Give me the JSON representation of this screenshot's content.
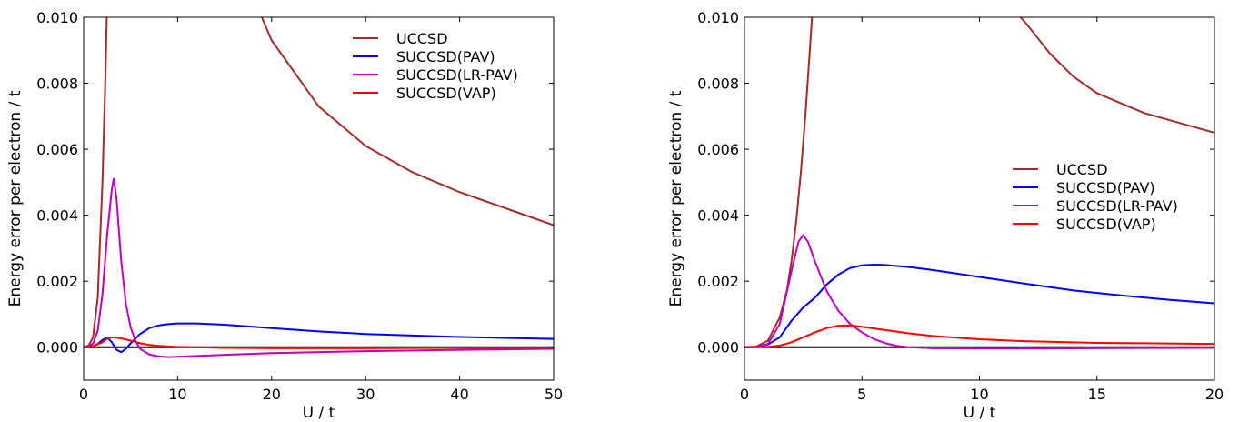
{
  "chart_data": [
    {
      "type": "line",
      "title": "",
      "xlabel": "U / t",
      "ylabel": "Energy error per electron / t",
      "xlim": [
        0,
        50
      ],
      "ylim": [
        -0.001,
        0.01
      ],
      "xticks": [
        0,
        10,
        20,
        30,
        40,
        50
      ],
      "xtick_labels": [
        "0",
        "10",
        "20",
        "30",
        "40",
        "50"
      ],
      "yticks": [
        0.0,
        0.002,
        0.004,
        0.006,
        0.008,
        0.01
      ],
      "ytick_labels": [
        "0.000",
        "0.002",
        "0.004",
        "0.006",
        "0.008",
        "0.010"
      ],
      "grid": false,
      "legend_position": "top-right",
      "reference_line": {
        "y": 0,
        "color": "#000000"
      },
      "series": [
        {
          "name": "UCCSD",
          "color": "#a52a2a",
          "x": [
            0,
            0.5,
            1,
            1.5,
            2,
            2.3,
            2.5,
            18.5,
            20,
            25,
            30,
            35,
            40,
            45,
            50
          ],
          "y": [
            0,
            3e-05,
            0.0003,
            0.0015,
            0.005,
            0.008,
            0.0105,
            0.0103,
            0.0093,
            0.0073,
            0.0061,
            0.0053,
            0.0047,
            0.0042,
            0.0037
          ]
        },
        {
          "name": "SUCCSD(PAV)",
          "color": "#0000ff",
          "x": [
            0,
            1,
            1.5,
            2,
            2.5,
            3,
            3.5,
            4,
            4.5,
            5,
            6,
            7,
            8,
            9,
            10,
            12,
            15,
            20,
            25,
            30,
            40,
            50
          ],
          "y": [
            0,
            3e-05,
            0.0001,
            0.00022,
            0.0003,
            0.00015,
            -8e-05,
            -0.00015,
            -5e-05,
            0.00012,
            0.0004,
            0.00058,
            0.00066,
            0.0007,
            0.00072,
            0.00072,
            0.00068,
            0.00058,
            0.00048,
            0.0004,
            0.00031,
            0.00025
          ]
        },
        {
          "name": "SUCCSD(LR-PAV)",
          "color": "#bf00bf",
          "x": [
            0,
            1,
            1.5,
            2,
            2.5,
            3,
            3.2,
            3.5,
            4,
            4.5,
            5,
            5.5,
            6,
            7,
            8,
            9,
            10,
            15,
            20,
            30,
            40,
            50
          ],
          "y": [
            0,
            0.0001,
            0.0005,
            0.0016,
            0.0034,
            0.0048,
            0.0051,
            0.0045,
            0.0026,
            0.0013,
            0.0006,
            0.0002,
            -5e-05,
            -0.00022,
            -0.00028,
            -0.0003,
            -0.00029,
            -0.00023,
            -0.00018,
            -0.00012,
            -8e-05,
            -5e-05
          ]
        },
        {
          "name": "SUCCSD(VAP)",
          "color": "#ff0000",
          "x": [
            0,
            1,
            2,
            2.5,
            3,
            3.5,
            4,
            5,
            6,
            7,
            8,
            10,
            15,
            20,
            30,
            40,
            50
          ],
          "y": [
            0,
            3e-05,
            0.00015,
            0.00026,
            0.0003,
            0.00029,
            0.00027,
            0.0002,
            0.00012,
            7e-05,
            4e-05,
            1e-05,
            -2e-05,
            -3e-05,
            -3e-05,
            -2e-05,
            -2e-05
          ]
        }
      ]
    },
    {
      "type": "line",
      "title": "",
      "xlabel": "U / t",
      "ylabel": "Energy error per electron / t",
      "xlim": [
        0,
        20
      ],
      "ylim": [
        -0.001,
        0.01
      ],
      "xticks": [
        0,
        5,
        10,
        15,
        20
      ],
      "xtick_labels": [
        "0",
        "5",
        "10",
        "15",
        "20"
      ],
      "yticks": [
        0.0,
        0.002,
        0.004,
        0.006,
        0.008,
        0.01
      ],
      "ytick_labels": [
        "0.000",
        "0.002",
        "0.004",
        "0.006",
        "0.008",
        "0.010"
      ],
      "grid": false,
      "legend_position": "center-right",
      "reference_line": {
        "y": 0,
        "color": "#000000"
      },
      "series": [
        {
          "name": "UCCSD",
          "color": "#a52a2a",
          "x": [
            0,
            0.5,
            1,
            1.5,
            1.8,
            2,
            2.2,
            2.4,
            2.6,
            2.8,
            2.9,
            11.5,
            12,
            13,
            14,
            15,
            16,
            17,
            18,
            19,
            20
          ],
          "y": [
            0,
            2e-05,
            0.0002,
            0.0009,
            0.0017,
            0.0026,
            0.0038,
            0.0053,
            0.0071,
            0.0092,
            0.0103,
            0.0102,
            0.0098,
            0.0089,
            0.0082,
            0.0077,
            0.0074,
            0.0071,
            0.0069,
            0.0067,
            0.0065
          ]
        },
        {
          "name": "SUCCSD(PAV)",
          "color": "#0000ff",
          "x": [
            0,
            0.5,
            1,
            1.5,
            2,
            2.5,
            3,
            3.5,
            4,
            4.5,
            5,
            5.5,
            6,
            7,
            8,
            10,
            12,
            14,
            16,
            18,
            20
          ],
          "y": [
            0,
            1e-05,
            8e-05,
            0.0003,
            0.0008,
            0.0012,
            0.0015,
            0.0019,
            0.0022,
            0.0024,
            0.00248,
            0.0025,
            0.00249,
            0.00243,
            0.00234,
            0.00213,
            0.00192,
            0.00172,
            0.00157,
            0.00144,
            0.00133
          ]
        },
        {
          "name": "SUCCSD(LR-PAV)",
          "color": "#bf00bf",
          "x": [
            0,
            0.5,
            1,
            1.5,
            2,
            2.3,
            2.5,
            2.7,
            3,
            3.5,
            4,
            4.5,
            5,
            5.5,
            6,
            6.5,
            7,
            8,
            10,
            12,
            15,
            20
          ],
          "y": [
            0,
            1e-05,
            0.0001,
            0.0007,
            0.0023,
            0.0032,
            0.0034,
            0.0032,
            0.0026,
            0.0017,
            0.0011,
            0.0007,
            0.00045,
            0.00025,
            0.00012,
            4e-05,
            0,
            -3e-05,
            -4e-05,
            -4e-05,
            -3e-05,
            -2e-05
          ]
        },
        {
          "name": "SUCCSD(VAP)",
          "color": "#ff0000",
          "x": [
            0,
            1,
            1.5,
            2,
            2.5,
            3,
            3.5,
            4,
            4.5,
            5,
            6,
            7,
            8,
            10,
            12,
            15,
            20
          ],
          "y": [
            0,
            1e-05,
            5e-05,
            0.00015,
            0.0003,
            0.00045,
            0.00058,
            0.00065,
            0.00066,
            0.00062,
            0.00052,
            0.00042,
            0.00034,
            0.00024,
            0.00018,
            0.00013,
            0.0001
          ]
        }
      ]
    }
  ]
}
